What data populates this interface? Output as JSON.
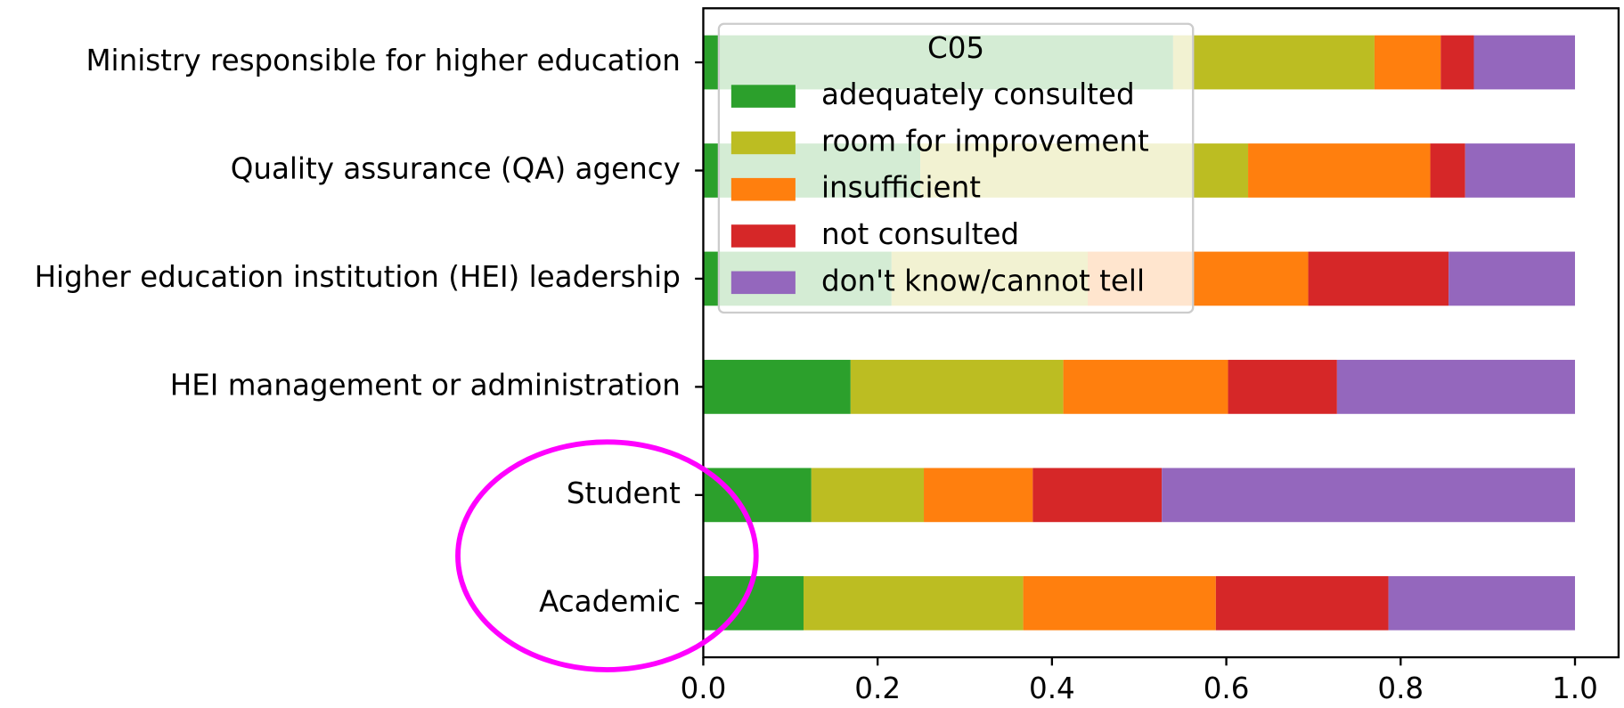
{
  "chart_data": {
    "type": "barh_stacked",
    "categories": [
      "Ministry responsible for higher education",
      "Quality assurance (QA) agency",
      "Higher education institution (HEI) leadership",
      "HEI management or administration",
      "Student",
      "Academic"
    ],
    "series": [
      {
        "name": "adequately consulted",
        "color": "#2ca02c",
        "values": [
          0.539,
          0.249,
          0.216,
          0.169,
          0.124,
          0.115
        ]
      },
      {
        "name": "room for improvement",
        "color": "#bcbd22",
        "values": [
          0.231,
          0.376,
          0.225,
          0.244,
          0.129,
          0.252
        ]
      },
      {
        "name": "insufficient",
        "color": "#ff7f0e",
        "values": [
          0.076,
          0.209,
          0.253,
          0.189,
          0.125,
          0.221
        ]
      },
      {
        "name": "not consulted",
        "color": "#d62728",
        "values": [
          0.038,
          0.04,
          0.161,
          0.125,
          0.148,
          0.198
        ]
      },
      {
        "name": "don't know/cannot tell",
        "color": "#9467bd",
        "values": [
          0.116,
          0.126,
          0.145,
          0.273,
          0.474,
          0.214
        ]
      }
    ],
    "xlim": [
      0,
      1.05
    ],
    "xticks": [
      {
        "value": 0,
        "label": "0.0"
      },
      {
        "value": 0.2,
        "label": "0.2"
      },
      {
        "value": 0.4,
        "label": "0.4"
      },
      {
        "value": 0.6,
        "label": "0.6"
      },
      {
        "value": 0.8,
        "label": "0.8"
      },
      {
        "value": 1,
        "label": "1.0"
      }
    ],
    "legend": {
      "title": "C05",
      "loc": "upper left"
    }
  }
}
